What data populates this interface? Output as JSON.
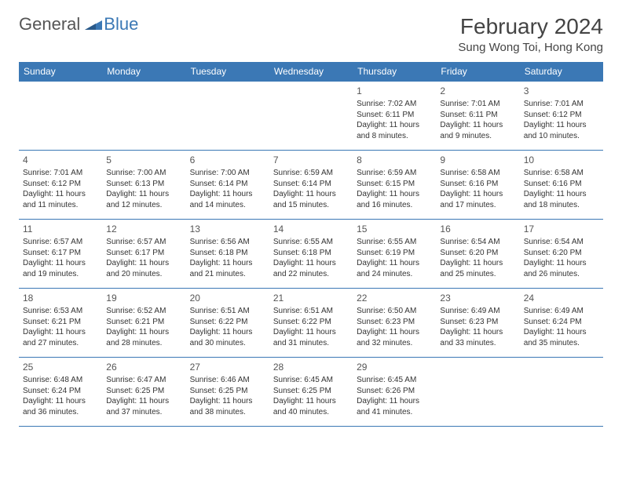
{
  "logo": {
    "text_a": "General",
    "text_b": "Blue"
  },
  "header": {
    "title": "February 2024",
    "location": "Sung Wong Toi, Hong Kong"
  },
  "colors": {
    "header_bg": "#3b78b5",
    "header_text": "#ffffff",
    "border": "#3b78b5",
    "body_text": "#333333",
    "page_bg": "#ffffff"
  },
  "day_headers": [
    "Sunday",
    "Monday",
    "Tuesday",
    "Wednesday",
    "Thursday",
    "Friday",
    "Saturday"
  ],
  "weeks": [
    [
      {
        "day": "",
        "sunrise": "",
        "sunset": "",
        "daylight": ""
      },
      {
        "day": "",
        "sunrise": "",
        "sunset": "",
        "daylight": ""
      },
      {
        "day": "",
        "sunrise": "",
        "sunset": "",
        "daylight": ""
      },
      {
        "day": "",
        "sunrise": "",
        "sunset": "",
        "daylight": ""
      },
      {
        "day": "1",
        "sunrise": "Sunrise: 7:02 AM",
        "sunset": "Sunset: 6:11 PM",
        "daylight": "Daylight: 11 hours and 8 minutes."
      },
      {
        "day": "2",
        "sunrise": "Sunrise: 7:01 AM",
        "sunset": "Sunset: 6:11 PM",
        "daylight": "Daylight: 11 hours and 9 minutes."
      },
      {
        "day": "3",
        "sunrise": "Sunrise: 7:01 AM",
        "sunset": "Sunset: 6:12 PM",
        "daylight": "Daylight: 11 hours and 10 minutes."
      }
    ],
    [
      {
        "day": "4",
        "sunrise": "Sunrise: 7:01 AM",
        "sunset": "Sunset: 6:12 PM",
        "daylight": "Daylight: 11 hours and 11 minutes."
      },
      {
        "day": "5",
        "sunrise": "Sunrise: 7:00 AM",
        "sunset": "Sunset: 6:13 PM",
        "daylight": "Daylight: 11 hours and 12 minutes."
      },
      {
        "day": "6",
        "sunrise": "Sunrise: 7:00 AM",
        "sunset": "Sunset: 6:14 PM",
        "daylight": "Daylight: 11 hours and 14 minutes."
      },
      {
        "day": "7",
        "sunrise": "Sunrise: 6:59 AM",
        "sunset": "Sunset: 6:14 PM",
        "daylight": "Daylight: 11 hours and 15 minutes."
      },
      {
        "day": "8",
        "sunrise": "Sunrise: 6:59 AM",
        "sunset": "Sunset: 6:15 PM",
        "daylight": "Daylight: 11 hours and 16 minutes."
      },
      {
        "day": "9",
        "sunrise": "Sunrise: 6:58 AM",
        "sunset": "Sunset: 6:16 PM",
        "daylight": "Daylight: 11 hours and 17 minutes."
      },
      {
        "day": "10",
        "sunrise": "Sunrise: 6:58 AM",
        "sunset": "Sunset: 6:16 PM",
        "daylight": "Daylight: 11 hours and 18 minutes."
      }
    ],
    [
      {
        "day": "11",
        "sunrise": "Sunrise: 6:57 AM",
        "sunset": "Sunset: 6:17 PM",
        "daylight": "Daylight: 11 hours and 19 minutes."
      },
      {
        "day": "12",
        "sunrise": "Sunrise: 6:57 AM",
        "sunset": "Sunset: 6:17 PM",
        "daylight": "Daylight: 11 hours and 20 minutes."
      },
      {
        "day": "13",
        "sunrise": "Sunrise: 6:56 AM",
        "sunset": "Sunset: 6:18 PM",
        "daylight": "Daylight: 11 hours and 21 minutes."
      },
      {
        "day": "14",
        "sunrise": "Sunrise: 6:55 AM",
        "sunset": "Sunset: 6:18 PM",
        "daylight": "Daylight: 11 hours and 22 minutes."
      },
      {
        "day": "15",
        "sunrise": "Sunrise: 6:55 AM",
        "sunset": "Sunset: 6:19 PM",
        "daylight": "Daylight: 11 hours and 24 minutes."
      },
      {
        "day": "16",
        "sunrise": "Sunrise: 6:54 AM",
        "sunset": "Sunset: 6:20 PM",
        "daylight": "Daylight: 11 hours and 25 minutes."
      },
      {
        "day": "17",
        "sunrise": "Sunrise: 6:54 AM",
        "sunset": "Sunset: 6:20 PM",
        "daylight": "Daylight: 11 hours and 26 minutes."
      }
    ],
    [
      {
        "day": "18",
        "sunrise": "Sunrise: 6:53 AM",
        "sunset": "Sunset: 6:21 PM",
        "daylight": "Daylight: 11 hours and 27 minutes."
      },
      {
        "day": "19",
        "sunrise": "Sunrise: 6:52 AM",
        "sunset": "Sunset: 6:21 PM",
        "daylight": "Daylight: 11 hours and 28 minutes."
      },
      {
        "day": "20",
        "sunrise": "Sunrise: 6:51 AM",
        "sunset": "Sunset: 6:22 PM",
        "daylight": "Daylight: 11 hours and 30 minutes."
      },
      {
        "day": "21",
        "sunrise": "Sunrise: 6:51 AM",
        "sunset": "Sunset: 6:22 PM",
        "daylight": "Daylight: 11 hours and 31 minutes."
      },
      {
        "day": "22",
        "sunrise": "Sunrise: 6:50 AM",
        "sunset": "Sunset: 6:23 PM",
        "daylight": "Daylight: 11 hours and 32 minutes."
      },
      {
        "day": "23",
        "sunrise": "Sunrise: 6:49 AM",
        "sunset": "Sunset: 6:23 PM",
        "daylight": "Daylight: 11 hours and 33 minutes."
      },
      {
        "day": "24",
        "sunrise": "Sunrise: 6:49 AM",
        "sunset": "Sunset: 6:24 PM",
        "daylight": "Daylight: 11 hours and 35 minutes."
      }
    ],
    [
      {
        "day": "25",
        "sunrise": "Sunrise: 6:48 AM",
        "sunset": "Sunset: 6:24 PM",
        "daylight": "Daylight: 11 hours and 36 minutes."
      },
      {
        "day": "26",
        "sunrise": "Sunrise: 6:47 AM",
        "sunset": "Sunset: 6:25 PM",
        "daylight": "Daylight: 11 hours and 37 minutes."
      },
      {
        "day": "27",
        "sunrise": "Sunrise: 6:46 AM",
        "sunset": "Sunset: 6:25 PM",
        "daylight": "Daylight: 11 hours and 38 minutes."
      },
      {
        "day": "28",
        "sunrise": "Sunrise: 6:45 AM",
        "sunset": "Sunset: 6:25 PM",
        "daylight": "Daylight: 11 hours and 40 minutes."
      },
      {
        "day": "29",
        "sunrise": "Sunrise: 6:45 AM",
        "sunset": "Sunset: 6:26 PM",
        "daylight": "Daylight: 11 hours and 41 minutes."
      },
      {
        "day": "",
        "sunrise": "",
        "sunset": "",
        "daylight": ""
      },
      {
        "day": "",
        "sunrise": "",
        "sunset": "",
        "daylight": ""
      }
    ]
  ]
}
